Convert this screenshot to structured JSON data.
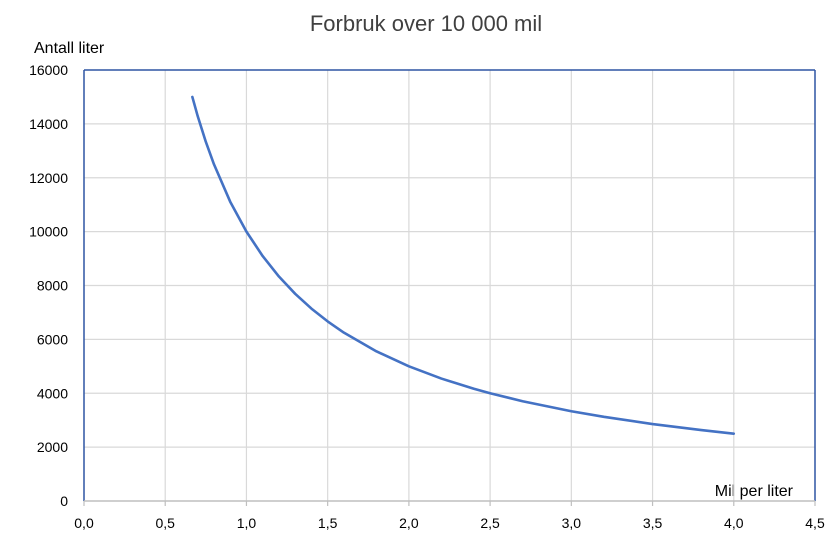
{
  "chart_data": {
    "type": "line",
    "title": "Forbruk over 10 000 mil",
    "ylabel": "Antall liter",
    "xlabel": "Mil per liter",
    "xlim": [
      0,
      4.5
    ],
    "ylim": [
      0,
      16000
    ],
    "x_ticks": [
      "0,0",
      "0,5",
      "1,0",
      "1,5",
      "2,0",
      "2,5",
      "3,0",
      "3,5",
      "4,0",
      "4,5"
    ],
    "y_ticks": [
      "0",
      "2000",
      "4000",
      "6000",
      "8000",
      "10000",
      "12000",
      "14000",
      "16000"
    ],
    "grid": true,
    "colors": {
      "line": "#4472C4",
      "frame": "#2F55A4",
      "grid": "#D9D9D9"
    },
    "series": [
      {
        "x": [
          0.667,
          0.7,
          0.75,
          0.8,
          0.9,
          1.0,
          1.1,
          1.2,
          1.3,
          1.4,
          1.5,
          1.6,
          1.8,
          2.0,
          2.2,
          2.4,
          2.5,
          2.7,
          3.0,
          3.2,
          3.5,
          3.8,
          4.0
        ],
        "values": [
          15000,
          14286,
          13333,
          12500,
          11111,
          10000,
          9091,
          8333,
          7692,
          7143,
          6667,
          6250,
          5556,
          5000,
          4545,
          4167,
          4000,
          3704,
          3333,
          3125,
          2857,
          2632,
          2500
        ]
      }
    ]
  }
}
